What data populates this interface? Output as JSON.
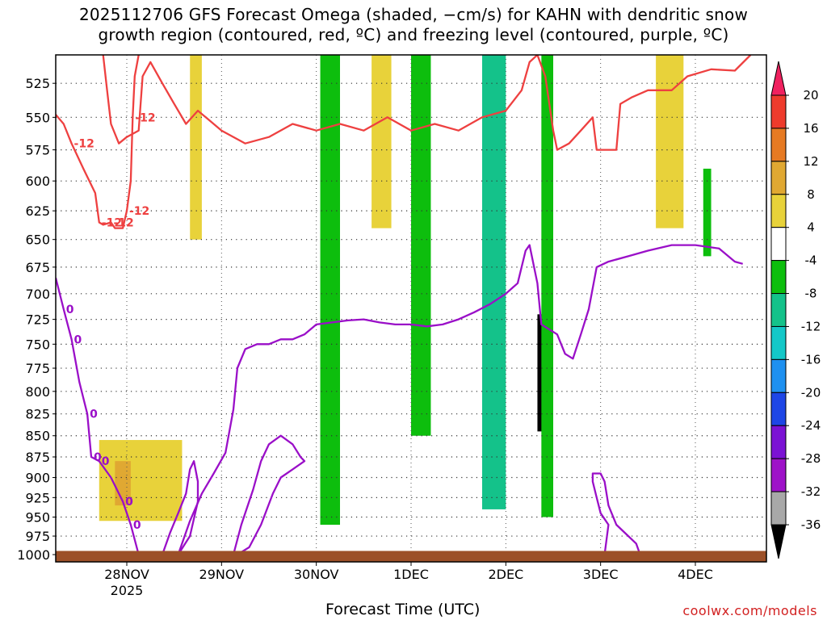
{
  "title": {
    "line1": "2025112706 GFS Forecast Omega (shaded, −cm/s) for KAHN with dendritic snow",
    "line2": "growth region (contoured, red, ºC) and freezing level (contoured, purple, ºC)"
  },
  "credit": "coolwx.com/models",
  "chart_data": {
    "type": "heatmap",
    "xlabel": "Forecast Time (UTC)",
    "ylabel": "",
    "x_ticks": [
      {
        "label": "28NOV",
        "sub": "2025",
        "t": 18
      },
      {
        "label": "29NOV",
        "sub": "",
        "t": 42
      },
      {
        "label": "30NOV",
        "sub": "",
        "t": 66
      },
      {
        "label": "1DEC",
        "sub": "",
        "t": 90
      },
      {
        "label": "2DEC",
        "sub": "",
        "t": 114
      },
      {
        "label": "3DEC",
        "sub": "",
        "t": 138
      },
      {
        "label": "4DEC",
        "sub": "",
        "t": 162
      }
    ],
    "xlim_hours": [
      0,
      180
    ],
    "y_ticks": [
      525,
      550,
      575,
      600,
      625,
      650,
      675,
      700,
      725,
      750,
      775,
      800,
      825,
      850,
      875,
      900,
      925,
      950,
      975,
      1000
    ],
    "ylim_hpa": [
      1010,
      505
    ],
    "grid": "dotted",
    "colorbar": {
      "levels": [
        20,
        16,
        12,
        8,
        4,
        -4,
        -8,
        -12,
        -16,
        -20,
        -24,
        -28,
        -32,
        -36
      ],
      "colors": [
        "#f0215f",
        "#ee3b2c",
        "#e67a23",
        "#e0a832",
        "#e8d23a",
        "#ffffff",
        "#0dbe0d",
        "#14c28a",
        "#14c8c8",
        "#1e90f0",
        "#1e46e6",
        "#7b12d4",
        "#9e12c8",
        "#a8a8a8",
        "#000000"
      ]
    },
    "contours": [
      {
        "name": "dendritic snow growth region",
        "color": "#ee4040",
        "labels": [
          "-12",
          "-12",
          "-12",
          "-12",
          "-12"
        ],
        "points": [
          [
            0,
            548
          ],
          [
            2,
            555
          ],
          [
            4,
            570
          ],
          [
            7,
            590
          ],
          [
            10,
            610
          ],
          [
            11,
            635
          ],
          [
            12,
            637
          ],
          [
            14,
            635
          ],
          [
            15,
            640
          ],
          [
            17,
            640
          ],
          [
            18,
            625
          ],
          [
            19,
            600
          ],
          [
            19.5,
            550
          ],
          [
            20,
            520
          ],
          [
            21,
            505
          ]
        ]
      },
      {
        "name": "dendritic snow growth region upper",
        "color": "#ee4040",
        "labels": [],
        "points": [
          [
            12,
            505
          ],
          [
            13,
            530
          ],
          [
            14,
            555
          ],
          [
            16,
            570
          ],
          [
            18,
            565
          ],
          [
            21,
            560
          ],
          [
            22,
            520
          ],
          [
            24,
            510
          ],
          [
            27,
            525
          ],
          [
            30,
            540
          ],
          [
            33,
            555
          ],
          [
            36,
            545
          ],
          [
            38,
            550
          ],
          [
            42,
            560
          ],
          [
            48,
            570
          ],
          [
            54,
            565
          ],
          [
            60,
            555
          ],
          [
            66,
            560
          ],
          [
            72,
            555
          ],
          [
            78,
            560
          ],
          [
            84,
            550
          ],
          [
            90,
            560
          ],
          [
            96,
            555
          ],
          [
            102,
            560
          ],
          [
            108,
            550
          ],
          [
            114,
            545
          ],
          [
            118,
            530
          ],
          [
            120,
            510
          ],
          [
            122,
            505
          ]
        ]
      },
      {
        "name": "dendritic snow growth region right",
        "color": "#ee4040",
        "labels": [],
        "points": [
          [
            122,
            505
          ],
          [
            124,
            520
          ],
          [
            126,
            560
          ],
          [
            127,
            575
          ],
          [
            130,
            570
          ],
          [
            133,
            560
          ],
          [
            136,
            550
          ],
          [
            137,
            575
          ],
          [
            142,
            575
          ],
          [
            143,
            540
          ],
          [
            146,
            535
          ],
          [
            150,
            530
          ],
          [
            156,
            530
          ],
          [
            160,
            520
          ],
          [
            166,
            515
          ],
          [
            172,
            516
          ],
          [
            176,
            505
          ]
        ]
      },
      {
        "name": "freezing level",
        "color": "#9a0fc8",
        "labels": [
          "0",
          "0",
          "0",
          "0",
          "0",
          "0",
          "0"
        ],
        "points": [
          [
            0,
            685
          ],
          [
            2,
            715
          ],
          [
            4,
            745
          ],
          [
            6,
            790
          ],
          [
            8,
            825
          ],
          [
            9,
            875
          ],
          [
            11,
            880
          ],
          [
            14,
            900
          ],
          [
            17,
            930
          ],
          [
            19,
            960
          ],
          [
            21,
            1000
          ]
        ]
      },
      {
        "name": "freezing level mid",
        "color": "#9a0fc8",
        "labels": [],
        "points": [
          [
            31,
            1000
          ],
          [
            34,
            955
          ],
          [
            37,
            920
          ],
          [
            40,
            895
          ],
          [
            43,
            870
          ],
          [
            45,
            820
          ],
          [
            46,
            775
          ],
          [
            48,
            755
          ],
          [
            51,
            750
          ],
          [
            54,
            750
          ],
          [
            57,
            745
          ],
          [
            60,
            745
          ],
          [
            63,
            740
          ],
          [
            66,
            730
          ],
          [
            70,
            728
          ],
          [
            74,
            726
          ],
          [
            78,
            725
          ],
          [
            82,
            728
          ],
          [
            86,
            730
          ],
          [
            90,
            730
          ],
          [
            94,
            732
          ],
          [
            98,
            730
          ],
          [
            102,
            725
          ],
          [
            106,
            718
          ],
          [
            110,
            710
          ],
          [
            114,
            700
          ],
          [
            117,
            690
          ],
          [
            119,
            660
          ],
          [
            120,
            655
          ],
          [
            122,
            690
          ],
          [
            123,
            730
          ],
          [
            125,
            735
          ],
          [
            127,
            740
          ],
          [
            129,
            760
          ],
          [
            131,
            765
          ],
          [
            133,
            740
          ],
          [
            135,
            715
          ],
          [
            137,
            675
          ],
          [
            140,
            670
          ],
          [
            145,
            665
          ],
          [
            150,
            660
          ],
          [
            156,
            655
          ],
          [
            162,
            655
          ],
          [
            168,
            658
          ],
          [
            172,
            670
          ],
          [
            174,
            672
          ]
        ]
      },
      {
        "name": "freezing level loop",
        "color": "#9a0fc8",
        "labels": [],
        "points": [
          [
            45,
            1000
          ],
          [
            47,
            960
          ],
          [
            50,
            915
          ],
          [
            52,
            880
          ],
          [
            54,
            860
          ],
          [
            57,
            850
          ],
          [
            60,
            860
          ],
          [
            62,
            875
          ],
          [
            63,
            880
          ],
          [
            60,
            890
          ],
          [
            57,
            900
          ],
          [
            55,
            920
          ],
          [
            52,
            960
          ],
          [
            49,
            990
          ],
          [
            46,
            1000
          ]
        ]
      },
      {
        "name": "freezing level loop2",
        "color": "#9a0fc8",
        "labels": [],
        "points": [
          [
            27,
            1000
          ],
          [
            29,
            970
          ],
          [
            31,
            945
          ],
          [
            33,
            920
          ],
          [
            34,
            890
          ],
          [
            35,
            880
          ],
          [
            36,
            905
          ],
          [
            36,
            930
          ],
          [
            34,
            975
          ],
          [
            31,
            1000
          ]
        ]
      },
      {
        "name": "freezing level right",
        "color": "#9a0fc8",
        "labels": [],
        "points": [
          [
            139,
            1000
          ],
          [
            140,
            960
          ],
          [
            138,
            945
          ],
          [
            137,
            925
          ],
          [
            136,
            905
          ],
          [
            136,
            895
          ],
          [
            138,
            895
          ],
          [
            139,
            905
          ],
          [
            140,
            935
          ],
          [
            142,
            960
          ],
          [
            145,
            975
          ],
          [
            147,
            985
          ],
          [
            148,
            1000
          ]
        ]
      }
    ],
    "shaded_regions": [
      {
        "level": 4,
        "color": "#e8d23a",
        "hpa": [
          855,
          955
        ],
        "hours": [
          11,
          32
        ]
      },
      {
        "level": 8,
        "color": "#e0a832",
        "hpa": [
          880,
          935
        ],
        "hours": [
          15,
          19
        ]
      },
      {
        "level": 4,
        "color": "#e8d23a",
        "hpa": [
          505,
          650
        ],
        "hours": [
          34,
          37
        ]
      },
      {
        "level": 4,
        "color": "#e8d23a",
        "hpa": [
          505,
          640
        ],
        "hours": [
          80,
          85
        ]
      },
      {
        "level": 4,
        "color": "#e8d23a",
        "hpa": [
          505,
          640
        ],
        "hours": [
          152,
          159
        ]
      },
      {
        "level": -8,
        "color": "#0dbe0d",
        "hpa": [
          505,
          960
        ],
        "hours": [
          67,
          72
        ]
      },
      {
        "level": -8,
        "color": "#0dbe0d",
        "hpa": [
          505,
          850
        ],
        "hours": [
          90,
          95
        ]
      },
      {
        "level": -12,
        "color": "#14c28a",
        "hpa": [
          505,
          940
        ],
        "hours": [
          108,
          114
        ]
      },
      {
        "level": -36,
        "color": "#000000",
        "hpa": [
          720,
          845
        ],
        "hours": [
          122,
          124
        ]
      },
      {
        "level": -8,
        "color": "#0dbe0d",
        "hpa": [
          505,
          950
        ],
        "hours": [
          123,
          126
        ]
      },
      {
        "level": -8,
        "color": "#0dbe0d",
        "hpa": [
          590,
          665
        ],
        "hours": [
          164,
          166
        ]
      }
    ],
    "terrain": {
      "color": "#9c5028",
      "surface_hpa": 995
    }
  }
}
